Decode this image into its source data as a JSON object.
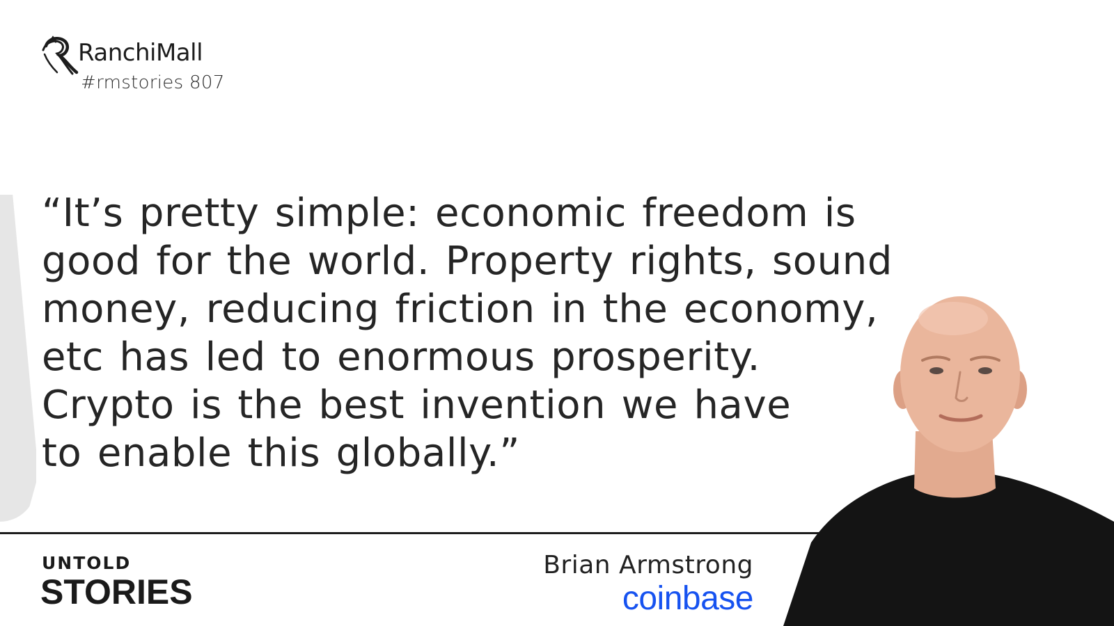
{
  "brand": {
    "name": "RanchiMall",
    "tag": "#rmstories 807"
  },
  "quote": {
    "lines": [
      "“It’s pretty simple: economic freedom is",
      "good for the world. Property rights, sound",
      "money, reducing friction in the economy,",
      "etc has led to enormous prosperity.",
      "Crypto is the best invention we have",
      "to enable this globally.”"
    ]
  },
  "series": {
    "top": "UNTOLD",
    "bottom": "STORIES"
  },
  "attribution": {
    "name": "Brian Armstrong",
    "company": "coinbase"
  },
  "colors": {
    "company": "#1652f0",
    "text": "#252525",
    "shape": "#e6e6e6"
  }
}
